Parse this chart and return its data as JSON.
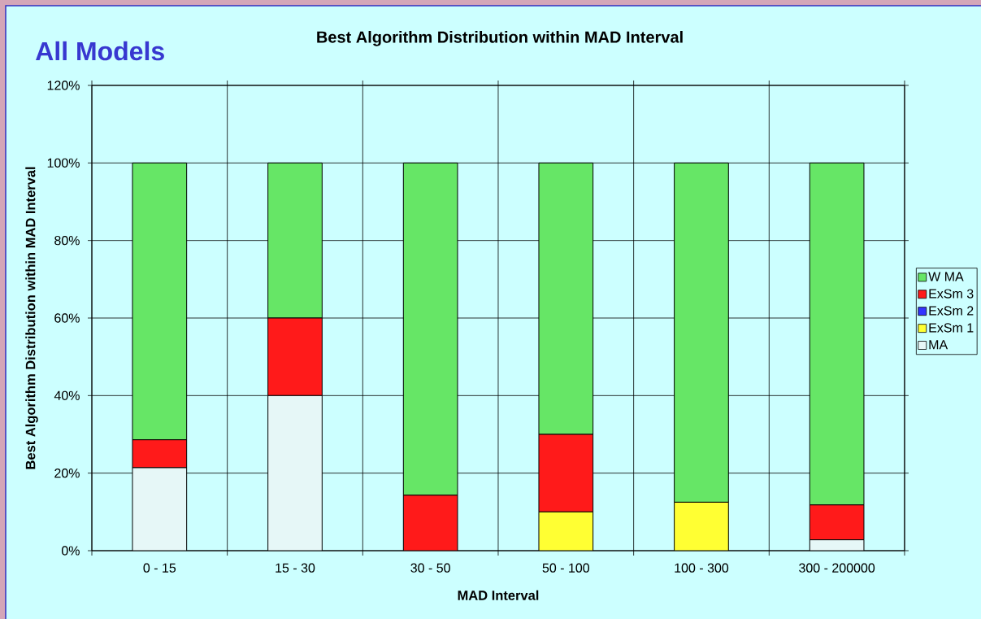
{
  "chart_data": {
    "type": "bar",
    "stacked": true,
    "title": "All Models",
    "subtitle": "Best Algorithm Distribution within MAD Interval",
    "xlabel": "MAD Interval",
    "ylabel": "Best Algorithm Distribution within MAD Interval",
    "categories": [
      "0 - 15",
      "15 - 30",
      "30 - 50",
      "50 - 100",
      "100 - 300",
      "300 - 200000"
    ],
    "series": [
      {
        "name": "MA",
        "color": "#e6f7f7",
        "values": [
          21.4,
          40,
          0,
          0,
          0,
          2.8
        ]
      },
      {
        "name": "ExSm 1",
        "color": "#ffff33",
        "values": [
          0,
          0,
          0,
          10,
          12.5,
          0
        ]
      },
      {
        "name": "ExSm 2",
        "color": "#3333ff",
        "values": [
          0,
          0,
          0,
          0,
          0,
          0
        ]
      },
      {
        "name": "ExSm 3",
        "color": "#ff1a1a",
        "values": [
          7.2,
          20,
          14.3,
          20,
          0,
          9
        ]
      },
      {
        "name": "W MA",
        "color": "#66e666",
        "values": [
          71.4,
          40,
          85.7,
          70,
          87.5,
          88.2
        ]
      }
    ],
    "ylim": [
      0,
      120
    ],
    "yticks": [
      {
        "value": 0,
        "label": "0%"
      },
      {
        "value": 20,
        "label": "20%"
      },
      {
        "value": 40,
        "label": "40%"
      },
      {
        "value": 60,
        "label": "60%"
      },
      {
        "value": 80,
        "label": "80%"
      },
      {
        "value": 100,
        "label": "100%"
      },
      {
        "value": 120,
        "label": "120%"
      }
    ],
    "grid": true,
    "legend": "right"
  }
}
